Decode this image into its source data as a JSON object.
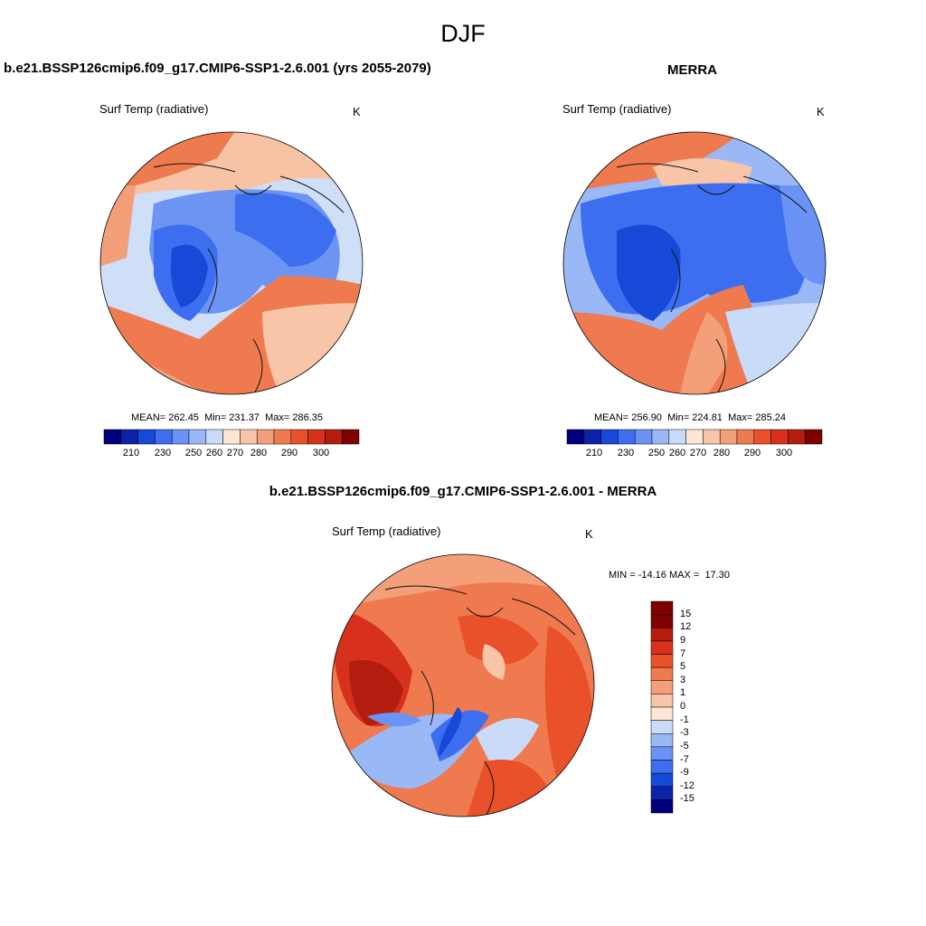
{
  "title": "DJF",
  "panels": [
    {
      "title": "b.e21.BSSP126cmip6.f09_g17.CMIP6-SSP1-2.6.001 (yrs 2055-2079)",
      "variable": "Surf Temp (radiative)",
      "units": "K",
      "stats": {
        "mean_label": "MEAN=",
        "mean": "262.45",
        "min_label": "Min=",
        "min": "231.37",
        "max_label": "Max=",
        "max": "286.35"
      },
      "colorbar": {
        "ticks": [
          "210",
          "230",
          "250",
          "260",
          "270",
          "280",
          "290",
          "300"
        ]
      }
    },
    {
      "title": "MERRA",
      "variable": "Surf Temp (radiative)",
      "units": "K",
      "stats": {
        "mean_label": "MEAN=",
        "mean": "256.90",
        "min_label": "Min=",
        "min": "224.81",
        "max_label": "Max=",
        "max": "285.24"
      },
      "colorbar": {
        "ticks": [
          "210",
          "230",
          "250",
          "260",
          "270",
          "280",
          "290",
          "300"
        ]
      }
    },
    {
      "title": "b.e21.BSSP126cmip6.f09_g17.CMIP6-SSP1-2.6.001 - MERRA",
      "variable": "Surf Temp (radiative)",
      "units": "K",
      "stats": {
        "min_label": "MIN =",
        "min": "-14.16",
        "max_label": "MAX =",
        "max": "17.30"
      },
      "colorbar": {
        "ticks": [
          "15",
          "12",
          "9",
          "7",
          "5",
          "3",
          "1",
          "0",
          "-1",
          "-3",
          "-5",
          "-7",
          "-9",
          "-12",
          "-15"
        ]
      }
    }
  ],
  "colors": {
    "abs_scale": [
      "#00007f",
      "#0b23a6",
      "#1749d8",
      "#3e6ef0",
      "#6a93f5",
      "#9ab8f6",
      "#c9dbf8",
      "#fde6d6",
      "#f8c5a8",
      "#f3a07a",
      "#ef7a4f",
      "#e9512a",
      "#d7301c",
      "#b31d0f",
      "#7f0000"
    ],
    "diff_scale": [
      "#7f0000",
      "#b31d0f",
      "#d7301c",
      "#e9512a",
      "#ef7a4f",
      "#f3a07a",
      "#f8c5a8",
      "#fde6d6",
      "#c9dbf8",
      "#9ab8f6",
      "#6a93f5",
      "#3e6ef0",
      "#1749d8",
      "#0b23a6",
      "#00007f"
    ]
  }
}
